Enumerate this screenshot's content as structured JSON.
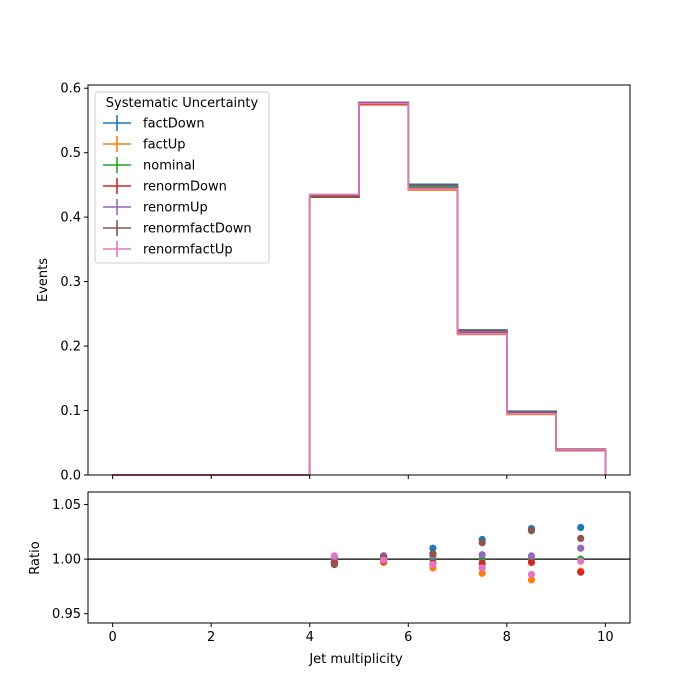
{
  "chart_data": {
    "type": "histogram-step",
    "top_panel": {
      "ylabel": "Events",
      "xlim": [
        -0.5,
        10.5
      ],
      "ylim": [
        0,
        0.605
      ],
      "yticks": [
        0.0,
        0.1,
        0.2,
        0.3,
        0.4,
        0.5,
        0.6
      ],
      "ytick_labels": [
        "0.0",
        "0.1",
        "0.2",
        "0.3",
        "0.4",
        "0.5",
        "0.6"
      ],
      "bin_edges": [
        0,
        1,
        2,
        3,
        4,
        5,
        6,
        7,
        8,
        9,
        10
      ],
      "legend": {
        "title": "Systematic Uncertainty",
        "placement": "top-left"
      },
      "series": [
        {
          "name": "factDown",
          "color": "#1f77b4",
          "values": [
            0,
            0,
            0,
            0,
            0.432,
            0.578,
            0.451,
            0.225,
            0.099,
            0.04
          ]
        },
        {
          "name": "factUp",
          "color": "#ff7f0e",
          "values": [
            0,
            0,
            0,
            0,
            0.434,
            0.574,
            0.442,
            0.218,
            0.094,
            0.038
          ]
        },
        {
          "name": "nominal",
          "color": "#2ca02c",
          "values": [
            0,
            0,
            0,
            0,
            0.434,
            0.576,
            0.446,
            0.221,
            0.096,
            0.039
          ]
        },
        {
          "name": "renormDown",
          "color": "#d62728",
          "values": [
            0,
            0,
            0,
            0,
            0.432,
            0.575,
            0.444,
            0.22,
            0.096,
            0.038
          ]
        },
        {
          "name": "renormUp",
          "color": "#9467bd",
          "values": [
            0,
            0,
            0,
            0,
            0.435,
            0.578,
            0.448,
            0.222,
            0.096,
            0.039
          ]
        },
        {
          "name": "renormfactDown",
          "color": "#8c564b",
          "values": [
            0,
            0,
            0,
            0,
            0.431,
            0.577,
            0.449,
            0.224,
            0.098,
            0.04
          ]
        },
        {
          "name": "renormfactUp",
          "color": "#e377c2",
          "values": [
            0,
            0,
            0,
            0,
            0.435,
            0.576,
            0.444,
            0.219,
            0.095,
            0.039
          ]
        }
      ]
    },
    "bottom_panel": {
      "type": "scatter",
      "ylabel": "Ratio",
      "xlabel": "Jet multiplicity",
      "xlim": [
        -0.5,
        10.5
      ],
      "ylim": [
        0.9415,
        1.0615
      ],
      "yticks": [
        0.95,
        1.0,
        1.05
      ],
      "ytick_labels": [
        "0.95",
        "1.00",
        "1.05"
      ],
      "xticks": [
        0,
        2,
        4,
        6,
        8,
        10
      ],
      "xtick_labels": [
        "0",
        "2",
        "4",
        "6",
        "8",
        "10"
      ],
      "reference_line": 1.0,
      "x": [
        4.5,
        5.5,
        6.5,
        7.5,
        8.5,
        9.5
      ],
      "series": [
        {
          "name": "factDown",
          "color": "#1f77b4",
          "values": [
            0.996,
            1.003,
            1.01,
            1.018,
            1.028,
            1.029
          ]
        },
        {
          "name": "factUp",
          "color": "#ff7f0e",
          "values": [
            1.001,
            0.997,
            0.992,
            0.987,
            0.981,
            0.989
          ]
        },
        {
          "name": "nominal",
          "color": "#2ca02c",
          "values": [
            1.0,
            1.0,
            1.0,
            1.0,
            1.0,
            1.0
          ]
        },
        {
          "name": "renormDown",
          "color": "#d62728",
          "values": [
            0.997,
            0.998,
            0.996,
            0.996,
            0.997,
            0.988
          ]
        },
        {
          "name": "renormUp",
          "color": "#9467bd",
          "values": [
            1.002,
            1.003,
            1.003,
            1.004,
            1.003,
            1.01
          ]
        },
        {
          "name": "renormfactDown",
          "color": "#8c564b",
          "values": [
            0.995,
            1.002,
            1.005,
            1.015,
            1.026,
            1.019
          ]
        },
        {
          "name": "renormfactUp",
          "color": "#e377c2",
          "values": [
            1.003,
            0.999,
            0.995,
            0.992,
            0.986,
            0.998
          ]
        }
      ]
    }
  }
}
